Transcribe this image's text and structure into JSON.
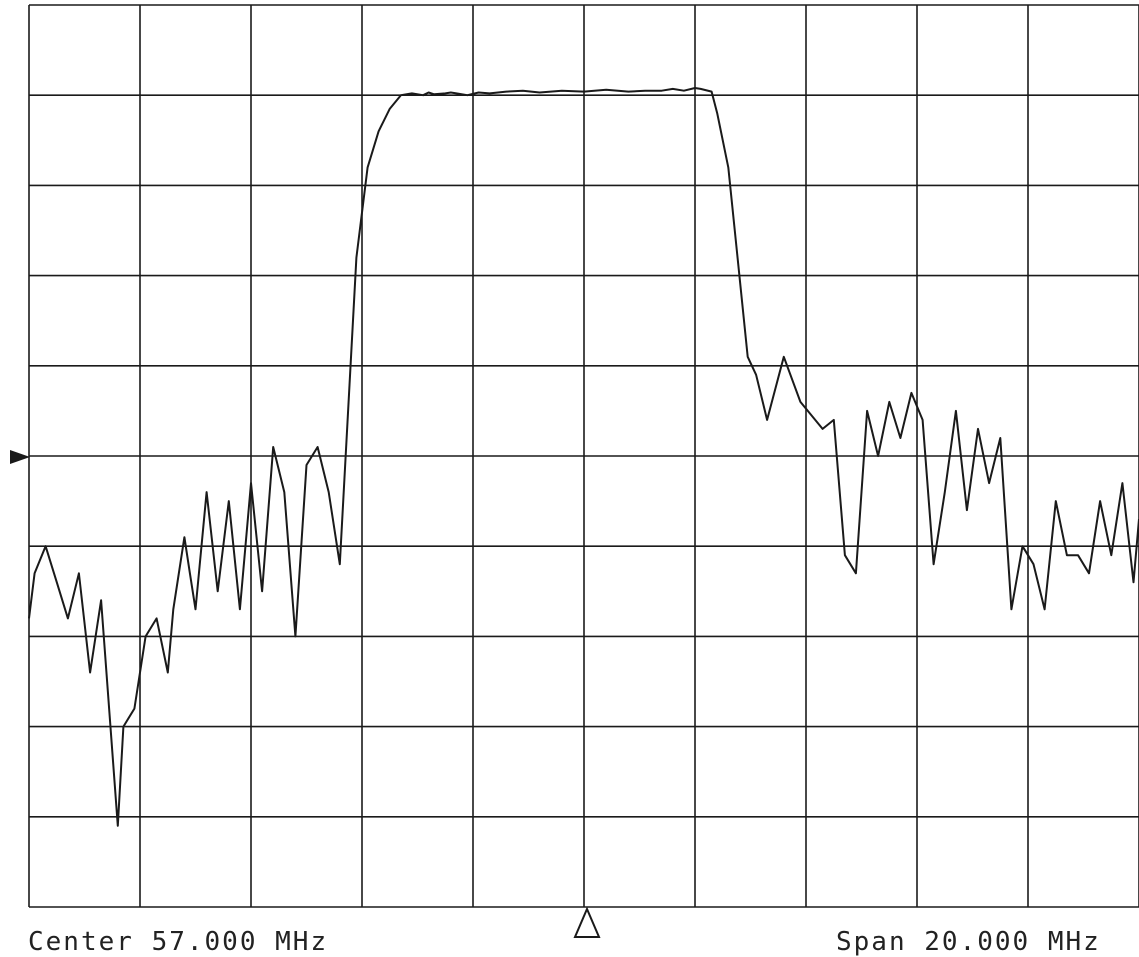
{
  "colors": {
    "grid": "#1a1a1a",
    "trace": "#1a1a1a",
    "background": "#ffffff"
  },
  "footer": {
    "center_label": "Center 57.000 MHz",
    "span_label": "Span 20.000 MHz"
  },
  "chart_data": {
    "type": "line",
    "title": "",
    "xlabel": "",
    "ylabel": "",
    "center_mhz": 57.0,
    "span_mhz": 20.0,
    "xlim": [
      47,
      67
    ],
    "ylim": [
      0,
      10
    ],
    "x_divisions": 10,
    "y_divisions": 10,
    "grid": true,
    "reference_marker": "left-edge triangle at level 5.5",
    "center_marker": "delta triangle at 57.000 MHz",
    "series": [
      {
        "x": [
          47.0,
          47.1,
          47.3,
          47.5,
          47.7,
          47.9,
          48.1,
          48.3,
          48.6,
          48.7,
          48.9,
          49.1,
          49.3,
          49.5,
          49.6,
          49.8,
          49.9,
          50.0,
          50.2,
          50.4,
          50.6,
          50.8,
          51.0,
          51.2,
          51.4,
          51.6,
          51.8,
          52.0,
          52.2,
          52.4,
          52.6,
          52.9,
          53.1,
          53.3,
          53.5,
          53.7,
          53.9,
          54.1,
          54.2,
          54.3,
          54.5,
          54.6,
          54.7,
          54.9,
          55.1,
          55.3,
          55.6,
          55.9,
          56.2,
          56.6,
          57.0,
          57.4,
          57.8,
          58.1,
          58.4,
          58.6,
          58.8,
          59.0,
          59.1,
          59.3,
          59.4,
          59.6,
          59.8,
          59.95,
          60.1,
          60.3,
          60.6,
          60.9,
          61.3,
          61.5,
          61.7,
          61.9,
          62.1,
          62.3,
          62.5,
          62.7,
          62.9,
          63.1,
          63.3,
          63.5,
          63.7,
          63.9,
          64.1,
          64.3,
          64.5,
          64.7,
          64.9,
          65.1,
          65.3,
          65.5,
          65.7,
          65.9,
          66.1,
          66.3,
          66.5,
          66.7,
          66.9,
          67.0
        ],
        "y": [
          3.2,
          3.7,
          4.0,
          3.6,
          3.2,
          3.7,
          2.6,
          3.4,
          0.9,
          2.0,
          2.2,
          3.0,
          3.2,
          2.6,
          3.3,
          4.1,
          3.7,
          3.3,
          4.6,
          3.5,
          4.5,
          3.3,
          4.7,
          3.5,
          5.1,
          4.6,
          3.0,
          4.9,
          5.1,
          4.6,
          3.8,
          7.2,
          8.2,
          8.6,
          8.85,
          9.0,
          9.02,
          9.0,
          9.03,
          9.01,
          9.02,
          9.03,
          9.02,
          9.0,
          9.03,
          9.02,
          9.04,
          9.05,
          9.03,
          9.05,
          9.04,
          9.06,
          9.04,
          9.05,
          9.05,
          9.07,
          9.05,
          9.08,
          9.07,
          9.04,
          8.8,
          8.2,
          7.0,
          6.1,
          5.9,
          5.4,
          6.1,
          5.6,
          5.3,
          5.4,
          3.9,
          3.7,
          5.5,
          5.0,
          5.6,
          5.2,
          5.7,
          5.4,
          3.8,
          4.6,
          5.5,
          4.4,
          5.3,
          4.7,
          5.2,
          3.3,
          4.0,
          3.8,
          3.3,
          4.5,
          3.9,
          3.9,
          3.7,
          4.5,
          3.9,
          4.7,
          3.6,
          4.3
        ]
      }
    ]
  }
}
